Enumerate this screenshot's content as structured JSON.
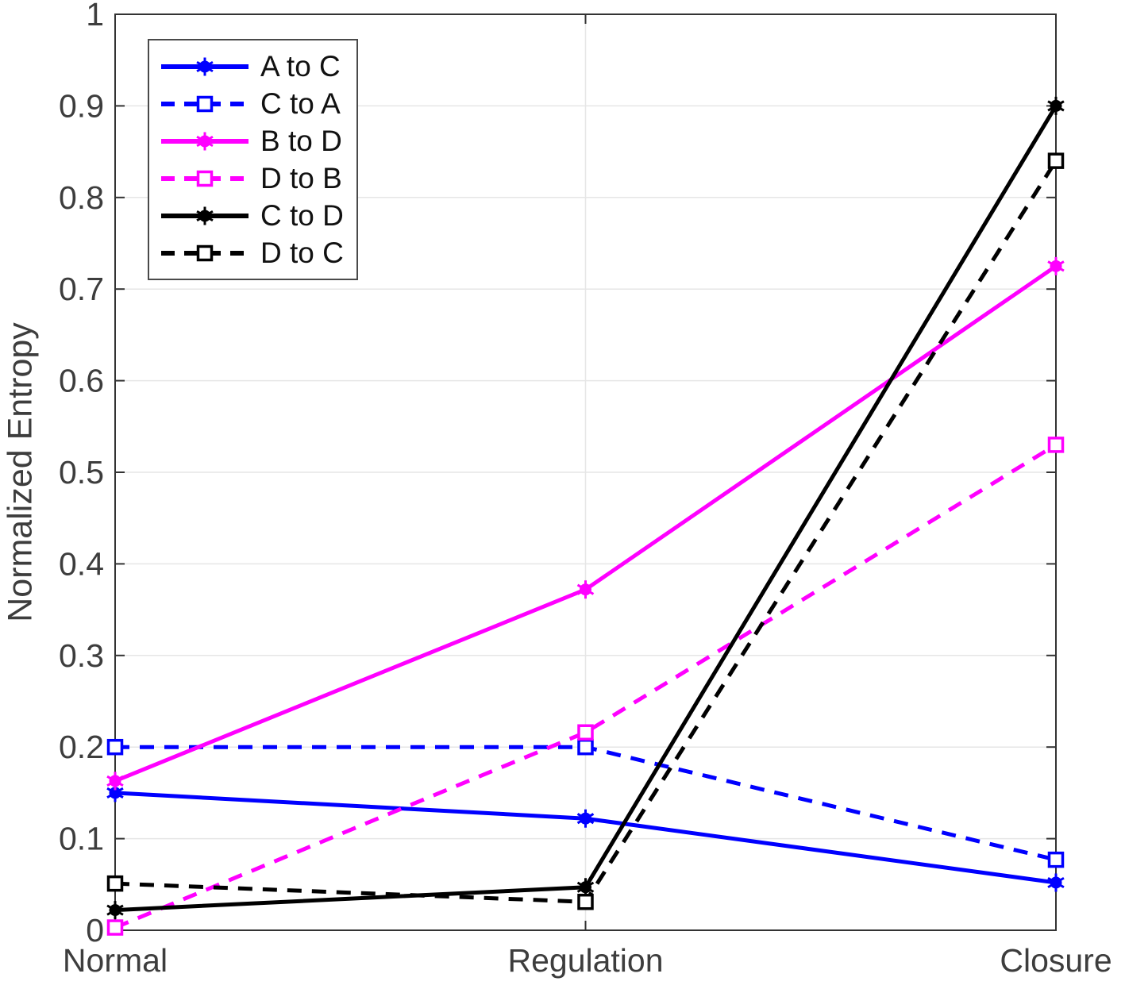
{
  "chart_data": {
    "type": "line",
    "title": "",
    "xlabel": "",
    "ylabel": "Normalized Entropy",
    "categories": [
      "Normal",
      "Regulation",
      "Closure"
    ],
    "ylim": [
      0,
      1
    ],
    "yticks": [
      0,
      0.1,
      0.2,
      0.3,
      0.4,
      0.5,
      0.6,
      0.7,
      0.8,
      0.9,
      1
    ],
    "ytick_labels": [
      "0",
      "0.1",
      "0.2",
      "0.3",
      "0.4",
      "0.5",
      "0.6",
      "0.7",
      "0.8",
      "0.9",
      "1"
    ],
    "grid": true,
    "legend_position": "top-left",
    "series": [
      {
        "name": "A to C",
        "color": "#0000FF",
        "line_style": "solid",
        "marker": "filled-asterisk-circle",
        "values": [
          0.15,
          0.122,
          0.052
        ]
      },
      {
        "name": "C to A",
        "color": "#0000FF",
        "line_style": "dashed",
        "marker": "open-square",
        "values": [
          0.2,
          0.2,
          0.077
        ]
      },
      {
        "name": "B to D",
        "color": "#FF00FF",
        "line_style": "solid",
        "marker": "filled-asterisk-circle",
        "values": [
          0.163,
          0.372,
          0.725
        ]
      },
      {
        "name": "D to B",
        "color": "#FF00FF",
        "line_style": "dashed",
        "marker": "open-square",
        "values": [
          0.003,
          0.216,
          0.53
        ]
      },
      {
        "name": "C to D",
        "color": "#000000",
        "line_style": "solid",
        "marker": "filled-asterisk-circle",
        "values": [
          0.022,
          0.047,
          0.9
        ]
      },
      {
        "name": "D to C",
        "color": "#000000",
        "line_style": "dashed",
        "marker": "open-square",
        "values": [
          0.051,
          0.031,
          0.84
        ]
      }
    ],
    "style": {
      "axis_color": "#333333",
      "tick_label_color": "#3d3d3d",
      "grid_color": "#E6E6E6",
      "background": "#FFFFFF",
      "line_width": 5,
      "dash_pattern": "18 13"
    }
  }
}
